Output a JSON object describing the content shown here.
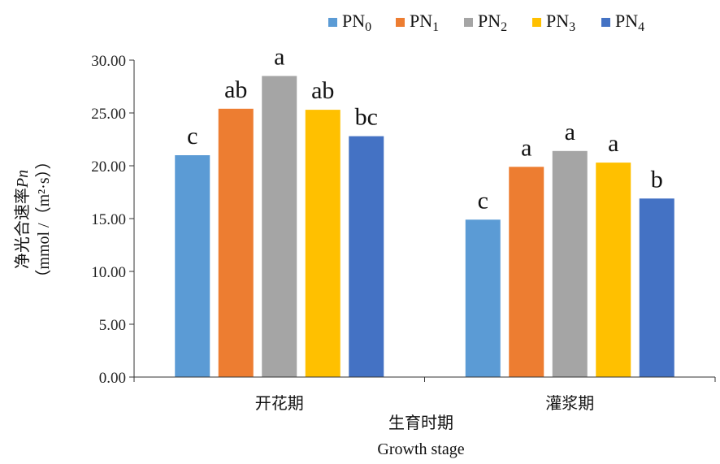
{
  "chart_data": {
    "type": "bar",
    "categories": [
      "开花期",
      "灌浆期"
    ],
    "series": [
      {
        "name": "PN",
        "sub": "0",
        "color": "#5B9BD5",
        "values": [
          21.0,
          14.9
        ],
        "labels": [
          "c",
          "c"
        ]
      },
      {
        "name": "PN",
        "sub": "1",
        "color": "#ED7D31",
        "values": [
          25.4,
          19.9
        ],
        "labels": [
          "ab",
          "a"
        ]
      },
      {
        "name": "PN",
        "sub": "2",
        "color": "#A5A5A5",
        "values": [
          28.5,
          21.4
        ],
        "labels": [
          "a",
          "a"
        ]
      },
      {
        "name": "PN",
        "sub": "3",
        "color": "#FFC000",
        "values": [
          25.3,
          20.3
        ],
        "labels": [
          "ab",
          "a"
        ]
      },
      {
        "name": "PN",
        "sub": "4",
        "color": "#4472C4",
        "values": [
          22.8,
          16.9
        ],
        "labels": [
          "bc",
          "b"
        ]
      }
    ],
    "xlabel": [
      "生育时期",
      "Growth stage"
    ],
    "ylabel": {
      "cn": "净光合速率",
      "italic": "Pn",
      "unit": "（mmol /（m²·s））"
    },
    "yticks": [
      "0.00",
      "5.00",
      "10.00",
      "15.00",
      "20.00",
      "25.00",
      "30.00"
    ],
    "ylim": [
      0,
      30
    ],
    "legend": "top",
    "grid": false
  }
}
